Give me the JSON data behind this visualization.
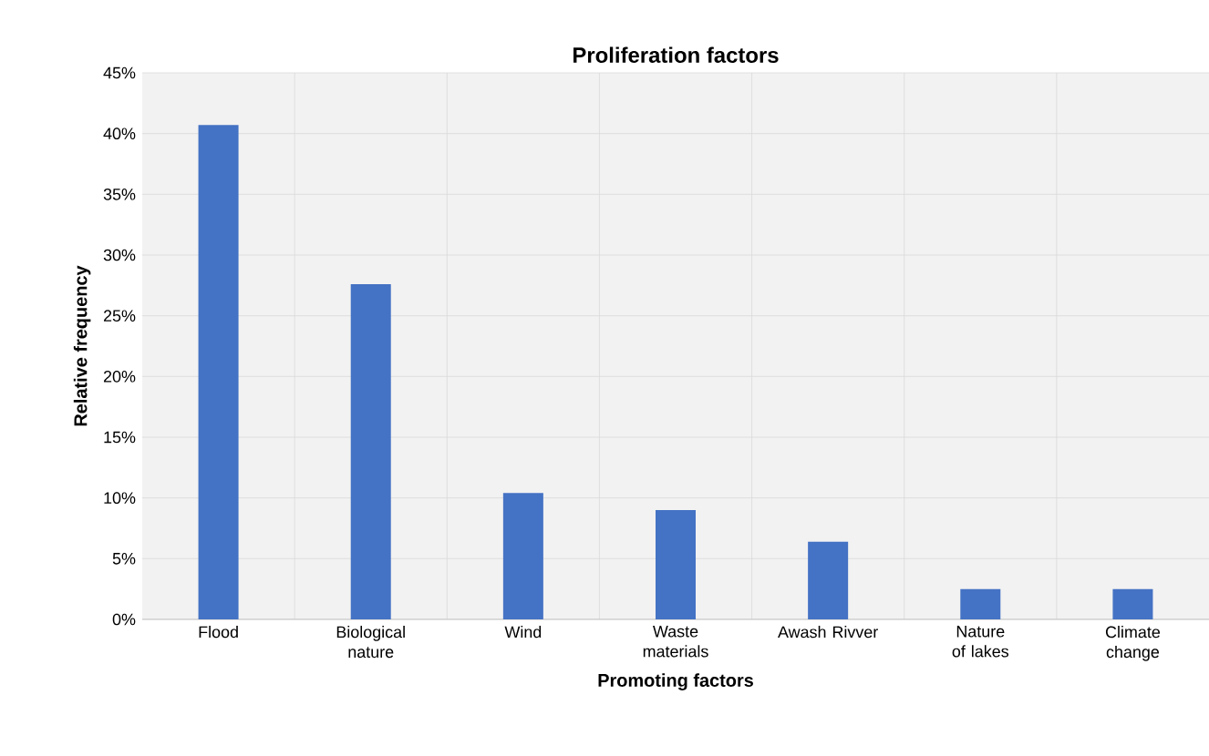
{
  "chart_data": {
    "type": "bar",
    "title": "Proliferation factors",
    "xlabel": "Promoting factors",
    "ylabel": "Relative frequency",
    "categories": [
      "Flood",
      "Biological nature",
      "Wind",
      "Waste materials",
      "Awash Rivver",
      "Nature of lakes",
      "Climate change"
    ],
    "values": [
      40.7,
      27.6,
      10.4,
      9.0,
      6.4,
      2.5,
      2.5
    ],
    "color": "#4472c4",
    "ylim": [
      0,
      45
    ],
    "yticks": [
      {
        "value": 0,
        "label": "0%"
      },
      {
        "value": 5,
        "label": "5%"
      },
      {
        "value": 10,
        "label": "10%"
      },
      {
        "value": 15,
        "label": "15%"
      },
      {
        "value": 20,
        "label": "20%"
      },
      {
        "value": 25,
        "label": "25%"
      },
      {
        "value": 30,
        "label": "30%"
      },
      {
        "value": 35,
        "label": "35%"
      },
      {
        "value": 40,
        "label": "40%"
      },
      {
        "value": 45,
        "label": "45%"
      }
    ],
    "grid": true
  }
}
